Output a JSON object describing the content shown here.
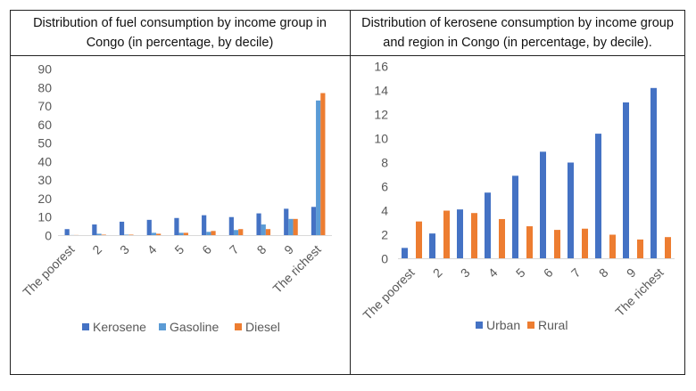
{
  "chart_data": [
    {
      "type": "bar",
      "title": "Distribution of fuel consumption by income group in Congo (in percentage, by decile)",
      "categories": [
        "The poorest",
        "2",
        "3",
        "4",
        "5",
        "6",
        "7",
        "8",
        "9",
        "The richest"
      ],
      "series": [
        {
          "name": "Kerosene",
          "color": "#4472c4",
          "values": [
            3.5,
            6,
            7.5,
            8.5,
            9.5,
            11,
            10,
            12,
            14.5,
            15.5
          ]
        },
        {
          "name": "Gasoline",
          "color": "#5b9bd5",
          "values": [
            0.3,
            1,
            0.5,
            1.5,
            1.5,
            2,
            3,
            6,
            9,
            73
          ]
        },
        {
          "name": "Diesel",
          "color": "#ed7d31",
          "values": [
            0.3,
            0.5,
            0.5,
            1,
            1.5,
            2.5,
            3.5,
            3.5,
            9,
            77
          ]
        }
      ],
      "ylim": [
        0,
        90
      ],
      "yticks": [
        0,
        10,
        20,
        30,
        40,
        50,
        60,
        70,
        80,
        90
      ],
      "grid": false,
      "legend": "bottom"
    },
    {
      "type": "bar",
      "title": "Distribution of kerosene consumption by income group and region in Congo (in percentage, by decile).",
      "categories": [
        "The poorest",
        "2",
        "3",
        "4",
        "5",
        "6",
        "7",
        "8",
        "9",
        "The richest"
      ],
      "series": [
        {
          "name": "Urban",
          "color": "#4472c4",
          "values": [
            0.9,
            2.1,
            4.1,
            5.5,
            6.9,
            8.9,
            8.0,
            10.4,
            13.0,
            14.2
          ]
        },
        {
          "name": "Rural",
          "color": "#ed7d31",
          "values": [
            3.1,
            4.0,
            3.8,
            3.3,
            2.7,
            2.4,
            2.5,
            2.0,
            1.6,
            1.8
          ]
        }
      ],
      "ylim": [
        0,
        16
      ],
      "yticks": [
        0,
        2,
        4,
        6,
        8,
        10,
        12,
        14,
        16
      ],
      "grid": false,
      "legend": "bottom"
    }
  ]
}
